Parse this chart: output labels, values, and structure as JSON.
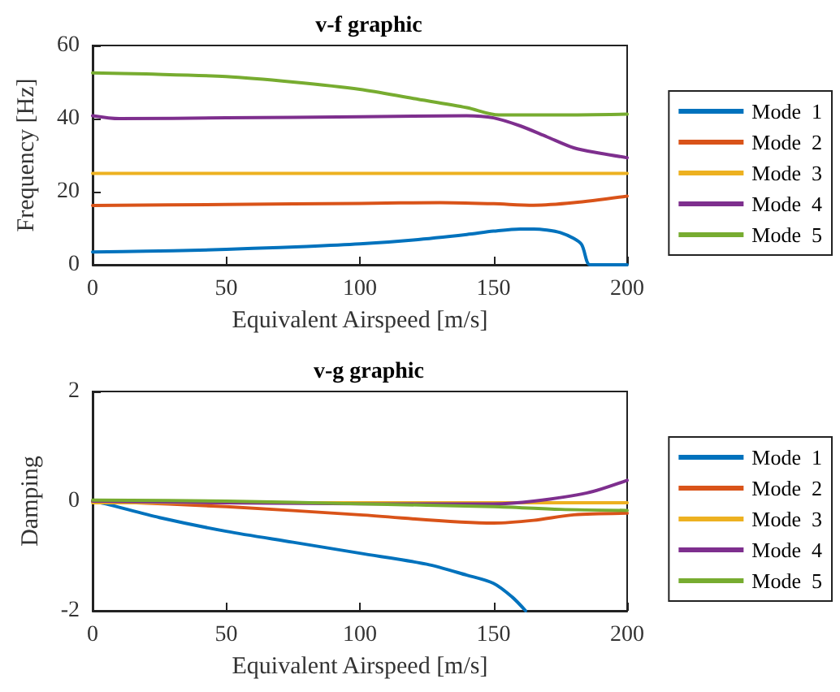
{
  "chart_data": [
    {
      "type": "line",
      "title": "v-f graphic",
      "xlabel": "Equivalent Airspeed [m/s]",
      "ylabel": "Frequency [Hz]",
      "xlim": [
        0,
        200
      ],
      "xticks": [
        0,
        50,
        100,
        150,
        200
      ],
      "ylim": [
        0,
        60
      ],
      "yticks": [
        0,
        20,
        40,
        60
      ],
      "grid": false,
      "legend": "right",
      "marker": "none",
      "series": [
        {
          "name": "Mode  1",
          "color": "#0072bd",
          "x": [
            0,
            20,
            40,
            60,
            80,
            100,
            120,
            140,
            150,
            160,
            165,
            170,
            175,
            180,
            183,
            186,
            190,
            200
          ],
          "values": [
            3.5,
            3.7,
            4,
            4.5,
            5,
            5.7,
            6.8,
            8.3,
            9.2,
            9.8,
            9.8,
            9.5,
            8.8,
            7.2,
            5.5,
            0,
            0,
            0
          ]
        },
        {
          "name": "Mode  2",
          "color": "#d95319",
          "x": [
            0,
            50,
            100,
            130,
            150,
            165,
            180,
            200
          ],
          "values": [
            16.2,
            16.5,
            16.8,
            17,
            16.7,
            16.3,
            17,
            18.8
          ]
        },
        {
          "name": "Mode  3",
          "color": "#edb120",
          "x": [
            0,
            200
          ],
          "values": [
            25,
            25
          ]
        },
        {
          "name": "Mode  4",
          "color": "#7e2f8e",
          "x": [
            0,
            10,
            50,
            100,
            140,
            150,
            160,
            170,
            180,
            190,
            200
          ],
          "values": [
            40.8,
            40,
            40.2,
            40.5,
            40.8,
            40.2,
            38,
            35,
            32,
            30.5,
            29.3
          ]
        },
        {
          "name": "Mode  5",
          "color": "#77ac30",
          "x": [
            0,
            20,
            50,
            75,
            100,
            120,
            140,
            152,
            175,
            200
          ],
          "values": [
            52.5,
            52.2,
            51.5,
            50,
            48,
            45.5,
            43,
            41,
            41,
            41.2
          ]
        }
      ]
    },
    {
      "type": "line",
      "title": "v-g graphic",
      "xlabel": "Equivalent Airspeed [m/s]",
      "ylabel": "Damping",
      "xlim": [
        0,
        200
      ],
      "xticks": [
        0,
        50,
        100,
        150,
        200
      ],
      "ylim": [
        -2,
        2
      ],
      "yticks": [
        -2,
        0,
        2
      ],
      "grid": false,
      "legend": "right",
      "marker": "none",
      "series": [
        {
          "name": "Mode  1",
          "color": "#0072bd",
          "x": [
            0,
            5,
            25,
            50,
            75,
            100,
            125,
            140,
            150,
            157,
            162
          ],
          "values": [
            0,
            -0.05,
            -0.3,
            -0.55,
            -0.75,
            -0.95,
            -1.15,
            -1.35,
            -1.5,
            -1.75,
            -2
          ]
        },
        {
          "name": "Mode  2",
          "color": "#d95319",
          "x": [
            0,
            50,
            100,
            150,
            165,
            180,
            200
          ],
          "values": [
            0,
            -0.1,
            -0.25,
            -0.4,
            -0.35,
            -0.25,
            -0.22
          ]
        },
        {
          "name": "Mode  3",
          "color": "#edb120",
          "x": [
            0,
            200
          ],
          "values": [
            -0.03,
            -0.03
          ]
        },
        {
          "name": "Mode  4",
          "color": "#7e2f8e",
          "x": [
            0,
            100,
            150,
            165,
            185,
            200
          ],
          "values": [
            0,
            -0.05,
            -0.05,
            0,
            0.15,
            0.38
          ]
        },
        {
          "name": "Mode  5",
          "color": "#77ac30",
          "x": [
            0,
            50,
            100,
            150,
            175,
            200
          ],
          "values": [
            0.02,
            0,
            -0.05,
            -0.1,
            -0.15,
            -0.17
          ]
        }
      ]
    }
  ]
}
